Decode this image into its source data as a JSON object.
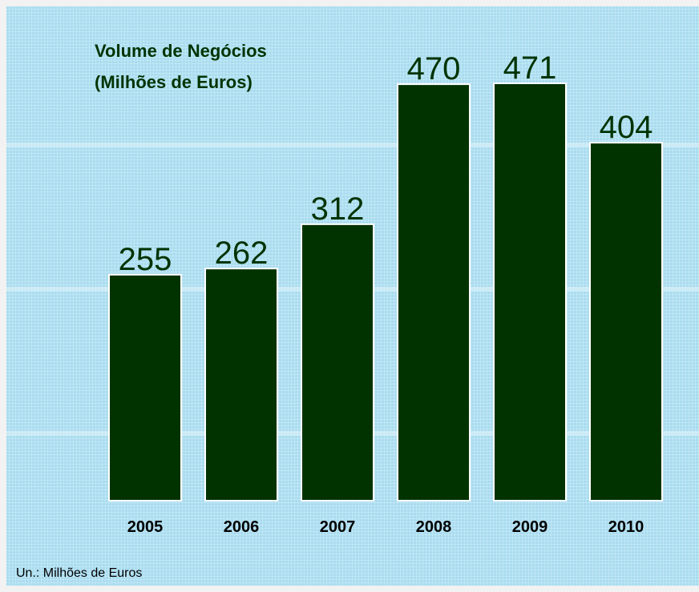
{
  "chart_data": {
    "type": "bar",
    "title": [
      "Volume de Negócios",
      "(Milhões de Euros)"
    ],
    "categories": [
      "2005",
      "2006",
      "2007",
      "2008",
      "2009",
      "2010"
    ],
    "values": [
      255,
      262,
      312,
      470,
      471,
      404
    ],
    "color": "#003300",
    "note": "Un.: Milhões de Euros"
  }
}
